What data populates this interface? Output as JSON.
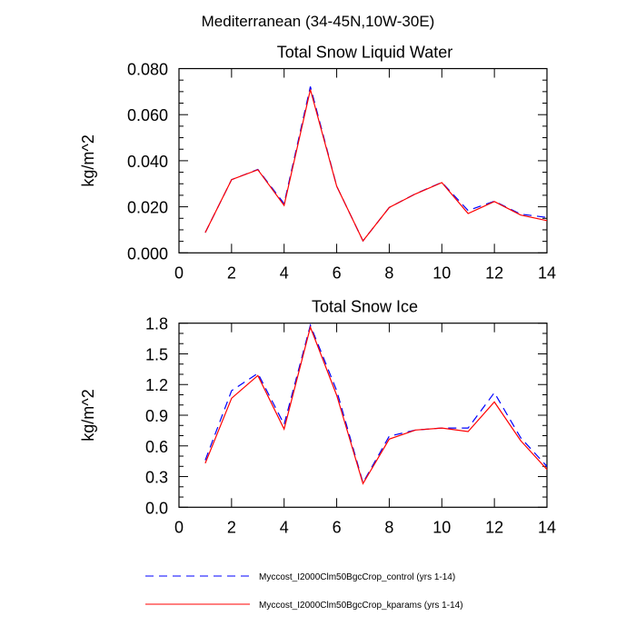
{
  "main_title": "Mediterranean (34-45N,10W-30E)",
  "legend": {
    "entries": [
      {
        "label": "Myccost_I2000Clm50BgcCrop_control (yrs 1-14)",
        "color": "#0000ff",
        "dash": "dashed"
      },
      {
        "label": "Myccost_I2000Clm50BgcCrop_kparams (yrs 1-14)",
        "color": "#ff0000",
        "dash": "solid"
      }
    ],
    "placement": "bottom"
  },
  "chart_data": [
    {
      "type": "line",
      "title": "Total Snow Liquid Water",
      "xlabel": "",
      "ylabel": "kg/m^2",
      "xlim": [
        0,
        14
      ],
      "ylim": [
        0,
        0.08
      ],
      "xticks": [
        "0",
        "2",
        "4",
        "6",
        "8",
        "10",
        "12",
        "14"
      ],
      "yticks": [
        "0.000",
        "0.020",
        "0.040",
        "0.060",
        "0.080"
      ],
      "grid": false,
      "x": [
        1,
        2,
        3,
        4,
        5,
        6,
        7,
        8,
        9,
        10,
        11,
        12,
        13,
        14
      ],
      "series": [
        {
          "name": "Myccost_I2000Clm50BgcCrop_control (yrs 1-14)",
          "values": [
            0.0088,
            0.0318,
            0.0362,
            0.0214,
            0.0722,
            0.0289,
            0.0052,
            0.0197,
            0.0257,
            0.0306,
            0.0184,
            0.0224,
            0.0168,
            0.0154
          ]
        },
        {
          "name": "Myccost_I2000Clm50BgcCrop_kparams (yrs 1-14)",
          "values": [
            0.0088,
            0.0318,
            0.0361,
            0.0206,
            0.0709,
            0.0289,
            0.0052,
            0.0197,
            0.0256,
            0.0305,
            0.0171,
            0.0223,
            0.0164,
            0.014
          ]
        }
      ]
    },
    {
      "type": "line",
      "title": "Total Snow Ice",
      "xlabel": "",
      "ylabel": "kg/m^2",
      "xlim": [
        0,
        14
      ],
      "ylim": [
        0,
        1.8
      ],
      "xticks": [
        "0",
        "2",
        "4",
        "6",
        "8",
        "10",
        "12",
        "14"
      ],
      "yticks": [
        "0.0",
        "0.3",
        "0.6",
        "0.9",
        "1.2",
        "1.5",
        "1.8"
      ],
      "grid": false,
      "x": [
        1,
        2,
        3,
        4,
        5,
        6,
        7,
        8,
        9,
        10,
        11,
        12,
        13,
        14
      ],
      "series": [
        {
          "name": "Myccost_I2000Clm50BgcCrop_control (yrs 1-14)",
          "values": [
            0.46,
            1.14,
            1.31,
            0.81,
            1.78,
            1.14,
            0.24,
            0.695,
            0.755,
            0.775,
            0.775,
            1.12,
            0.68,
            0.4
          ]
        },
        {
          "name": "Myccost_I2000Clm50BgcCrop_kparams (yrs 1-14)",
          "values": [
            0.43,
            1.066,
            1.288,
            0.764,
            1.761,
            1.095,
            0.231,
            0.666,
            0.755,
            0.775,
            0.74,
            1.03,
            0.651,
            0.37
          ]
        }
      ]
    }
  ]
}
